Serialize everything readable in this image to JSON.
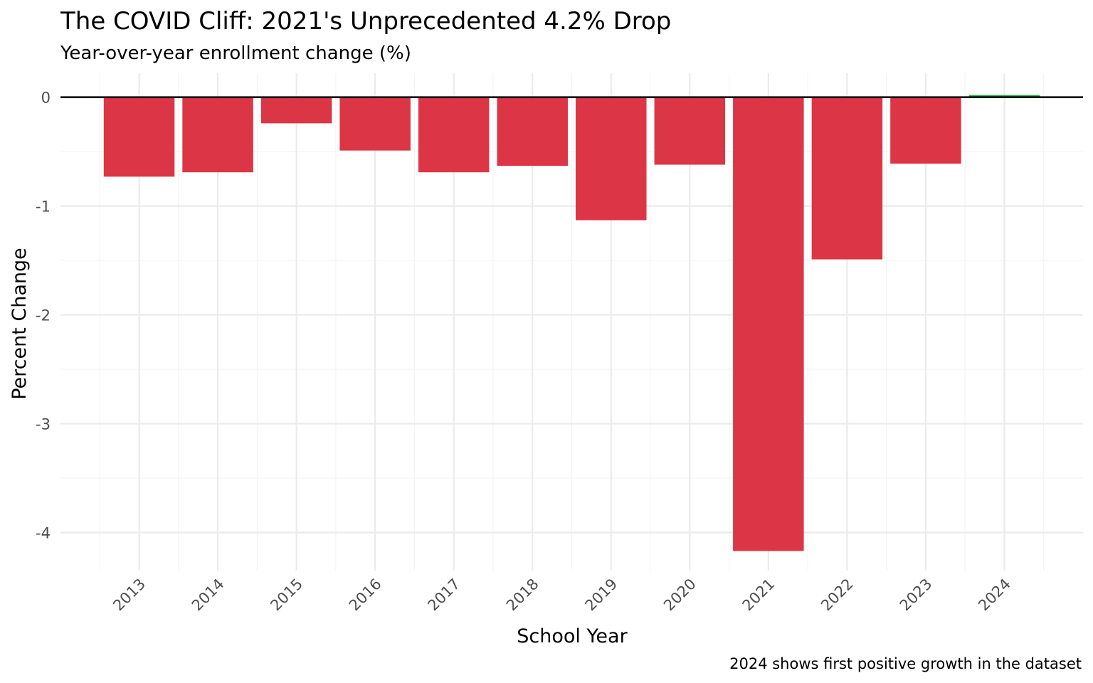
{
  "chart_data": {
    "type": "bar",
    "title": "The COVID Cliff: 2021's Unprecedented 4.2% Drop",
    "subtitle": "Year-over-year enrollment change (%)",
    "xlabel": "School Year",
    "ylabel": "Percent Change",
    "caption": "2024 shows first positive growth in the dataset",
    "categories": [
      "2013",
      "2014",
      "2015",
      "2016",
      "2017",
      "2018",
      "2019",
      "2020",
      "2021",
      "2022",
      "2023",
      "2024"
    ],
    "values": [
      -0.73,
      -0.69,
      -0.24,
      -0.49,
      -0.69,
      -0.63,
      -1.13,
      -0.62,
      -4.17,
      -1.49,
      -0.61,
      0.02
    ],
    "ylim": [
      -4.35,
      0.22
    ],
    "yticks": [
      0,
      -1,
      -2,
      -3,
      -4
    ],
    "ytick_labels": [
      "0",
      "-1",
      "-2",
      "-3",
      "-4"
    ],
    "grid": true,
    "zero_line": true,
    "colors": {
      "negative": "#dc3545",
      "positive": "#28a745",
      "zero_line": "#000000"
    }
  }
}
